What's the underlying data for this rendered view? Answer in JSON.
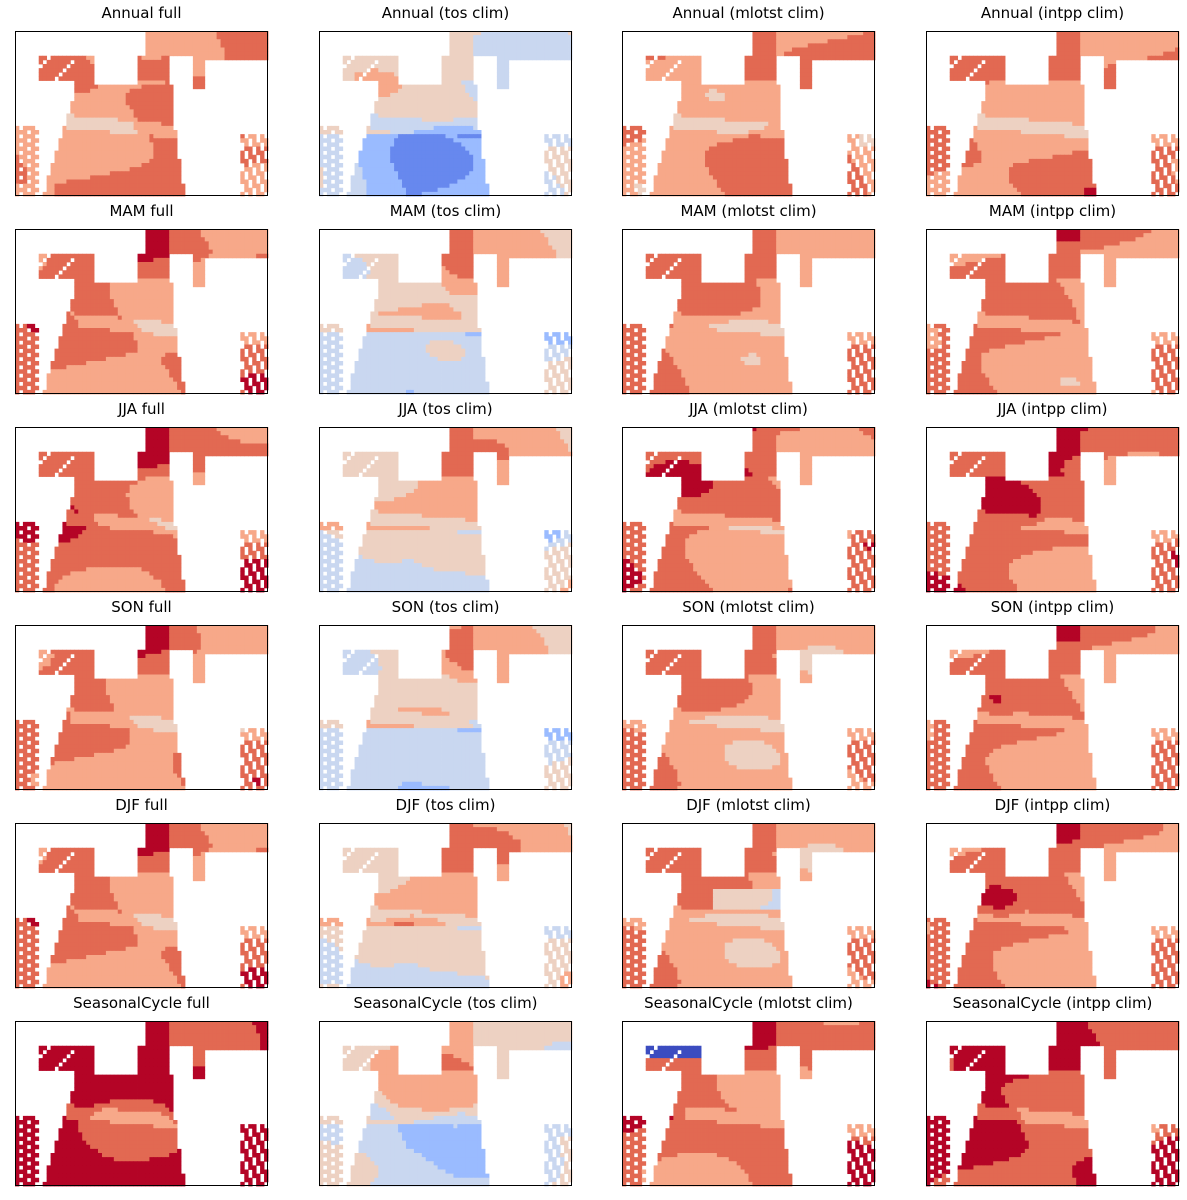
{
  "figure": {
    "rows": [
      "Annual",
      "MAM",
      "JJA",
      "SON",
      "DJF",
      "SeasonalCycle"
    ],
    "columns": [
      "full",
      "tos clim",
      "mlotst clim",
      "intpp clim"
    ]
  },
  "colormap": {
    "name": "coolwarm",
    "stops": [
      "#3b4cc0",
      "#6788ee",
      "#9abbff",
      "#c9d7f0",
      "#edd1c2",
      "#f7a889",
      "#e26952",
      "#b40426"
    ]
  },
  "chart_data": [
    {
      "type": "heatmap",
      "title": "Annual full",
      "row": "Annual",
      "variant": "full",
      "mean_level": 0.8,
      "axes_ticks": false
    },
    {
      "type": "heatmap",
      "title": "Annual (tos clim)",
      "row": "Annual",
      "variant": "tos clim",
      "mean_level": 0.52,
      "axes_ticks": false
    },
    {
      "type": "heatmap",
      "title": "Annual (mlotst clim)",
      "row": "Annual",
      "variant": "mlotst clim",
      "mean_level": 0.78,
      "axes_ticks": false
    },
    {
      "type": "heatmap",
      "title": "Annual (intpp clim)",
      "row": "Annual",
      "variant": "intpp clim",
      "mean_level": 0.8,
      "axes_ticks": false
    },
    {
      "type": "heatmap",
      "title": "MAM full",
      "row": "MAM",
      "variant": "full",
      "mean_level": 0.8,
      "axes_ticks": false
    },
    {
      "type": "heatmap",
      "title": "MAM (tos clim)",
      "row": "MAM",
      "variant": "tos clim",
      "mean_level": 0.62,
      "axes_ticks": false
    },
    {
      "type": "heatmap",
      "title": "MAM (mlotst clim)",
      "row": "MAM",
      "variant": "mlotst clim",
      "mean_level": 0.78,
      "axes_ticks": false
    },
    {
      "type": "heatmap",
      "title": "MAM (intpp clim)",
      "row": "MAM",
      "variant": "intpp clim",
      "mean_level": 0.78,
      "axes_ticks": false
    },
    {
      "type": "heatmap",
      "title": "JJA full",
      "row": "JJA",
      "variant": "full",
      "mean_level": 0.84,
      "axes_ticks": false
    },
    {
      "type": "heatmap",
      "title": "JJA (tos clim)",
      "row": "JJA",
      "variant": "tos clim",
      "mean_level": 0.66,
      "axes_ticks": false
    },
    {
      "type": "heatmap",
      "title": "JJA (mlotst clim)",
      "row": "JJA",
      "variant": "mlotst clim",
      "mean_level": 0.82,
      "axes_ticks": false
    },
    {
      "type": "heatmap",
      "title": "JJA (intpp clim)",
      "row": "JJA",
      "variant": "intpp clim",
      "mean_level": 0.84,
      "axes_ticks": false
    },
    {
      "type": "heatmap",
      "title": "SON full",
      "row": "SON",
      "variant": "full",
      "mean_level": 0.79,
      "axes_ticks": false
    },
    {
      "type": "heatmap",
      "title": "SON (tos clim)",
      "row": "SON",
      "variant": "tos clim",
      "mean_level": 0.6,
      "axes_ticks": false
    },
    {
      "type": "heatmap",
      "title": "SON (mlotst clim)",
      "row": "SON",
      "variant": "mlotst clim",
      "mean_level": 0.76,
      "axes_ticks": false
    },
    {
      "type": "heatmap",
      "title": "SON (intpp clim)",
      "row": "SON",
      "variant": "intpp clim",
      "mean_level": 0.79,
      "axes_ticks": false
    },
    {
      "type": "heatmap",
      "title": "DJF full",
      "row": "DJF",
      "variant": "full",
      "mean_level": 0.8,
      "axes_ticks": false
    },
    {
      "type": "heatmap",
      "title": "DJF (tos clim)",
      "row": "DJF",
      "variant": "tos clim",
      "mean_level": 0.68,
      "axes_ticks": false
    },
    {
      "type": "heatmap",
      "title": "DJF (mlotst clim)",
      "row": "DJF",
      "variant": "mlotst clim",
      "mean_level": 0.76,
      "axes_ticks": false
    },
    {
      "type": "heatmap",
      "title": "DJF (intpp clim)",
      "row": "DJF",
      "variant": "intpp clim",
      "mean_level": 0.8,
      "axes_ticks": false
    },
    {
      "type": "heatmap",
      "title": "SeasonalCycle full",
      "row": "SeasonalCycle",
      "variant": "full",
      "mean_level": 0.99,
      "axes_ticks": false
    },
    {
      "type": "heatmap",
      "title": "SeasonalCycle (tos clim)",
      "row": "SeasonalCycle",
      "variant": "tos clim",
      "mean_level": 0.6,
      "axes_ticks": false
    },
    {
      "type": "heatmap",
      "title": "SeasonalCycle (mlotst clim)",
      "row": "SeasonalCycle",
      "variant": "mlotst clim",
      "mean_level": 0.85,
      "axes_ticks": false
    },
    {
      "type": "heatmap",
      "title": "SeasonalCycle (intpp clim)",
      "row": "SeasonalCycle",
      "variant": "intpp clim",
      "mean_level": 0.93,
      "axes_ticks": false
    }
  ]
}
